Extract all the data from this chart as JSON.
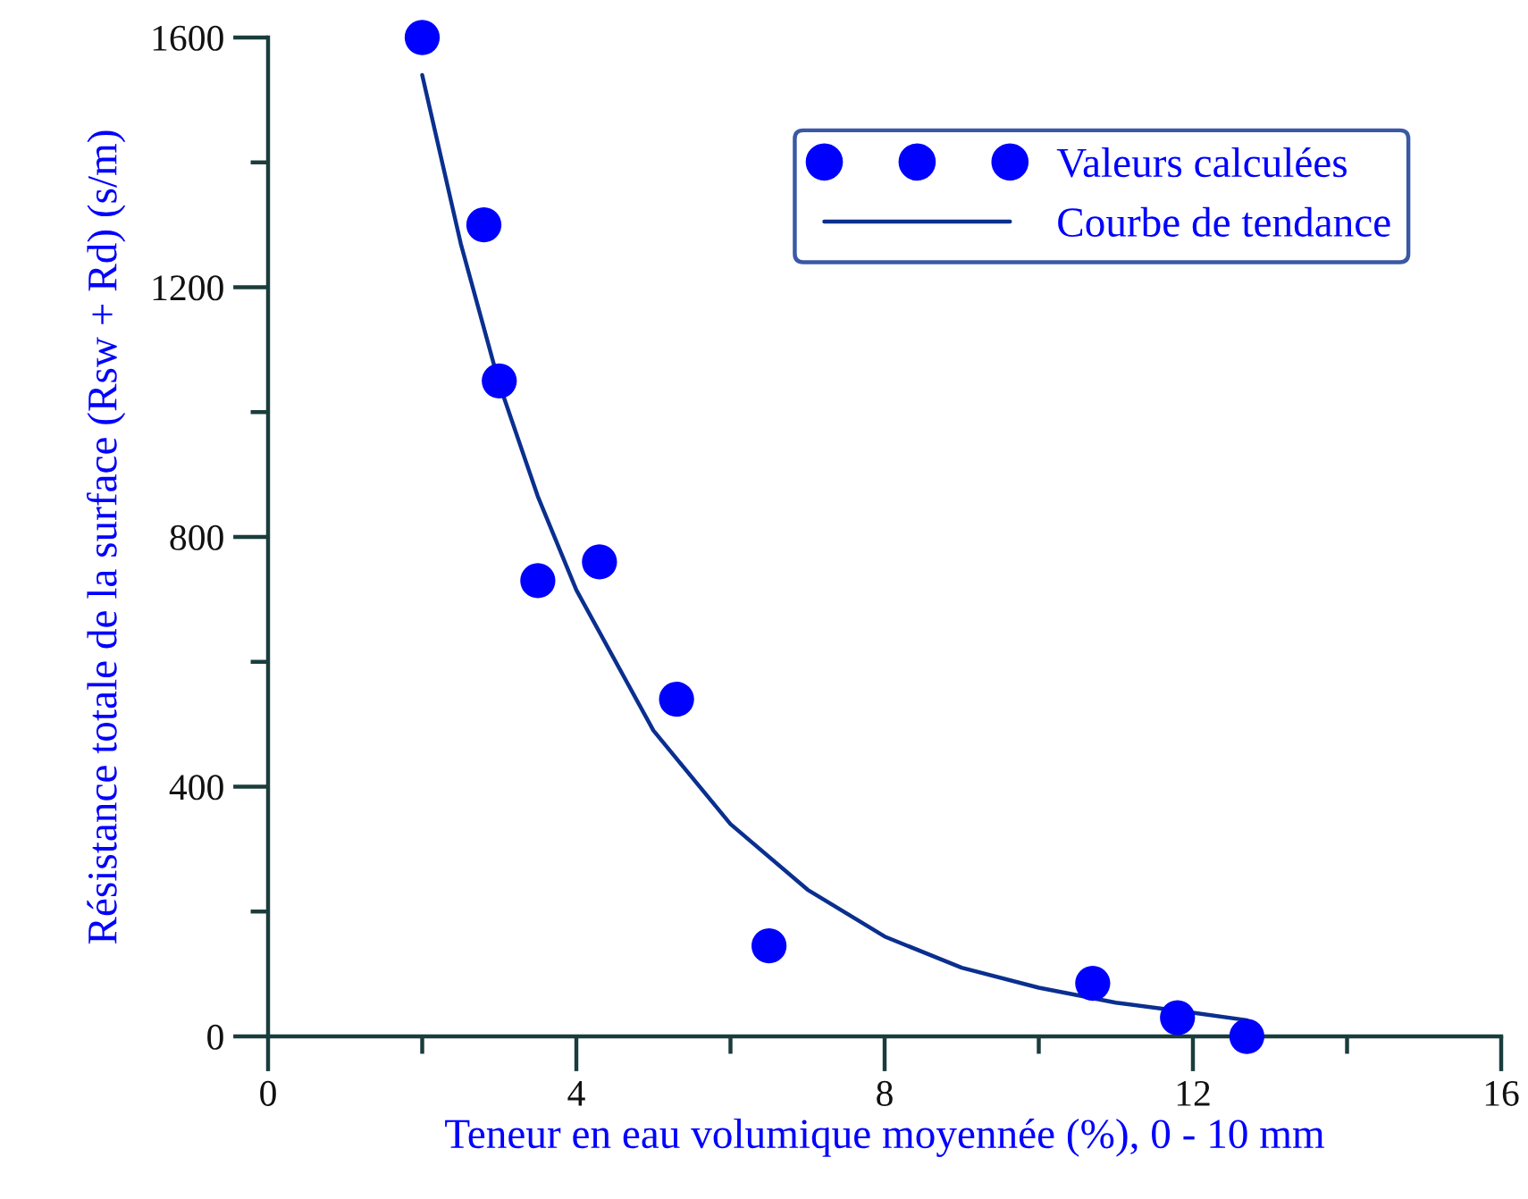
{
  "chart_data": {
    "type": "scatter",
    "xlabel": "Teneur en eau volumique moyennée (%), 0 - 10 mm",
    "ylabel": "Résistance totale de la surface (Rsw + Rd) (s/m)",
    "xlim": [
      0,
      16
    ],
    "ylim": [
      0,
      1600
    ],
    "xticks": [
      0,
      {
        "value": 2,
        "label": null
      },
      4,
      {
        "value": 6,
        "label": null
      },
      8,
      {
        "value": 10,
        "label": null
      },
      12,
      {
        "value": 14,
        "label": null
      },
      16
    ],
    "yticks": [
      0,
      {
        "value": 200,
        "label": null
      },
      400,
      {
        "value": 600,
        "label": null
      },
      800,
      {
        "value": 1000,
        "label": null
      },
      1200,
      {
        "value": 1400,
        "label": null
      },
      1600
    ],
    "grid": false,
    "legend": "top right",
    "series": [
      {
        "name": "Valeurs calculées",
        "marker": "circle",
        "color": "#0000ff",
        "x": [
          2.0,
          2.8,
          3.0,
          3.5,
          4.3,
          5.3,
          6.5,
          10.7,
          11.8,
          12.7
        ],
        "values": [
          1600,
          1300,
          1050,
          730,
          760,
          540,
          145,
          85,
          30,
          0
        ]
      },
      {
        "name": "Courbe de tendance",
        "type": "line",
        "color": "#0a2f8f",
        "line_style": "solid",
        "marker": "none",
        "x": [
          2,
          2.5,
          3,
          3.5,
          4,
          5,
          6,
          7,
          8,
          9,
          10,
          11,
          12,
          12.7
        ],
        "values": [
          1540,
          1270,
          1045,
          865,
          715,
          490,
          340,
          235,
          160,
          110,
          78,
          54,
          38,
          26
        ]
      }
    ]
  }
}
